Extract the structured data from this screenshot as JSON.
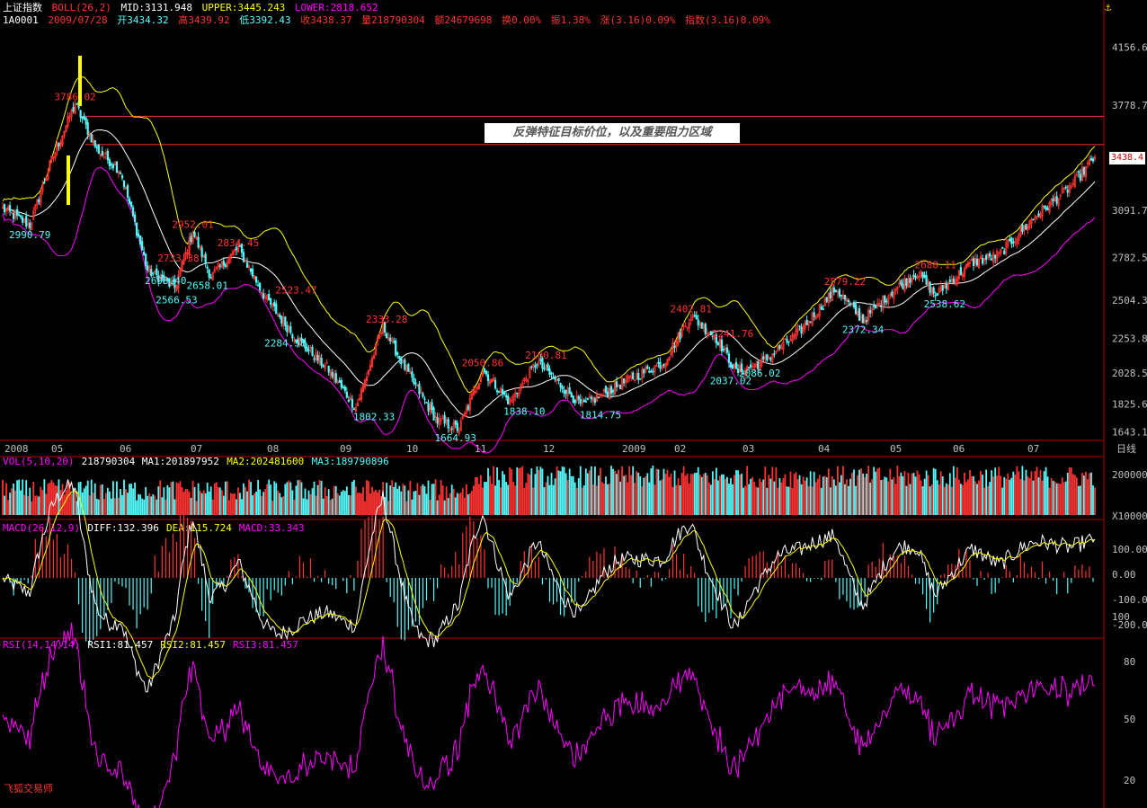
{
  "header": {
    "index_name": "上证指数",
    "indicator": "BOLL(26,2)",
    "mid_label": "MID:3131.948",
    "upper_label": "UPPER:3445.243",
    "lower_label": "LOWER:2818.652",
    "code": "1A0001",
    "date": "2009/07/28",
    "open": "开3434.32",
    "high": "高3439.92",
    "low": "低3392.43",
    "close": "收3438.37",
    "volume": "量218790304",
    "amount": "额24679698",
    "turnover": "换0.00%",
    "amplitude": "振1.38%",
    "rise": "涨(3.16)0.09%",
    "index_chg": "指数(3.16)0.09%"
  },
  "annotation": "反弹特征目标价位，以及重要阻力区域",
  "current_price_tag": "3438.4",
  "brand": "飞狐交易师",
  "panels": {
    "vol_header": [
      "VOL(5,10,20)",
      "218790304",
      "MA1:201897952",
      "MA2:202481600",
      "MA3:189790896"
    ],
    "macd_header": [
      "MACD(26,12,9)",
      "DIFF:132.396",
      "DEA:115.724",
      "MACD:33.343"
    ],
    "rsi_header": [
      "RSI(14,14,14)",
      "RSI1:81.457",
      "RSI2:81.457",
      "RSI3:81.457"
    ]
  },
  "colors": {
    "up": "#ff3232",
    "down": "#54fcfc",
    "mid": "#ffffff",
    "upper": "#ffff00",
    "lower": "#ff00ff",
    "resistance": "#ff3030",
    "axis": "#b00000",
    "text": "#c0c0c0"
  },
  "chart_data": {
    "type": "candlestick",
    "title": "上证指数 BOLL(26,2)",
    "price_axis_ticks": [
      4156.6,
      3778.7,
      3438.4,
      3091.7,
      2782.5,
      2504.3,
      2253.8,
      2028.5,
      1825.6,
      1643.1
    ],
    "price_range": [
      1600,
      4300
    ],
    "time_labels": [
      "2008",
      "05",
      "06",
      "07",
      "08",
      "09",
      "10",
      "11",
      "12",
      "2009",
      "02",
      "03",
      "04",
      "05",
      "06",
      "07",
      "日线"
    ],
    "resistance_levels": [
      3705,
      3520
    ],
    "waypoints": [
      {
        "i": 0,
        "close": 3100
      },
      {
        "i": 15,
        "close": 2995
      },
      {
        "i": 27,
        "close": 3420
      },
      {
        "i": 40,
        "close": 3786
      },
      {
        "i": 52,
        "close": 3490
      },
      {
        "i": 65,
        "close": 3350
      },
      {
        "i": 80,
        "close": 2700
      },
      {
        "i": 95,
        "close": 2586
      },
      {
        "i": 105,
        "close": 2952
      },
      {
        "i": 115,
        "close": 2658
      },
      {
        "i": 130,
        "close": 2845
      },
      {
        "i": 145,
        "close": 2523
      },
      {
        "i": 160,
        "close": 2284
      },
      {
        "i": 180,
        "close": 2050
      },
      {
        "i": 195,
        "close": 1802
      },
      {
        "i": 210,
        "close": 2333
      },
      {
        "i": 225,
        "close": 2000
      },
      {
        "i": 240,
        "close": 1715
      },
      {
        "i": 252,
        "close": 1664
      },
      {
        "i": 265,
        "close": 2050
      },
      {
        "i": 280,
        "close": 1838
      },
      {
        "i": 295,
        "close": 2100
      },
      {
        "i": 320,
        "close": 1814
      },
      {
        "i": 340,
        "close": 1950
      },
      {
        "i": 365,
        "close": 2100
      },
      {
        "i": 380,
        "close": 2402
      },
      {
        "i": 395,
        "close": 2242
      },
      {
        "i": 405,
        "close": 2037
      },
      {
        "i": 420,
        "close": 2100
      },
      {
        "i": 440,
        "close": 2300
      },
      {
        "i": 460,
        "close": 2579
      },
      {
        "i": 475,
        "close": 2372
      },
      {
        "i": 490,
        "close": 2550
      },
      {
        "i": 505,
        "close": 2688
      },
      {
        "i": 515,
        "close": 2538
      },
      {
        "i": 535,
        "close": 2750
      },
      {
        "i": 550,
        "close": 2800
      },
      {
        "i": 570,
        "close": 3050
      },
      {
        "i": 590,
        "close": 3250
      },
      {
        "i": 603,
        "close": 3438
      }
    ],
    "volume_axis": [
      "200000",
      "X10000"
    ],
    "macd_axis": [
      "100.00",
      "0.00",
      "-100.0",
      "-200.0",
      "100"
    ],
    "rsi_axis": [
      "80",
      "50",
      "20"
    ],
    "peak_labels": [
      {
        "text": "3786.02",
        "i": 40,
        "price": 3786,
        "pos": "above"
      },
      {
        "text": "2990.79",
        "i": 15,
        "price": 2990,
        "pos": "below"
      },
      {
        "text": "2952.01",
        "i": 105,
        "price": 2952,
        "pos": "above"
      },
      {
        "text": "2693.40",
        "i": 90,
        "price": 2693,
        "pos": "below"
      },
      {
        "text": "2733.38",
        "i": 97,
        "price": 2733,
        "pos": "above"
      },
      {
        "text": "2566.53",
        "i": 96,
        "price": 2566,
        "pos": "below"
      },
      {
        "text": "2658.01",
        "i": 113,
        "price": 2658,
        "pos": "below"
      },
      {
        "text": "2834.45",
        "i": 130,
        "price": 2834,
        "pos": "above"
      },
      {
        "text": "2523.47",
        "i": 162,
        "price": 2523,
        "pos": "above"
      },
      {
        "text": "2284.58",
        "i": 156,
        "price": 2284,
        "pos": "below"
      },
      {
        "text": "2333.28",
        "i": 212,
        "price": 2333,
        "pos": "above"
      },
      {
        "text": "1802.33",
        "i": 205,
        "price": 1802,
        "pos": "below"
      },
      {
        "text": "1664.93",
        "i": 250,
        "price": 1664,
        "pos": "below"
      },
      {
        "text": "2050.86",
        "i": 265,
        "price": 2050,
        "pos": "above"
      },
      {
        "text": "2100.81",
        "i": 300,
        "price": 2100,
        "pos": "above"
      },
      {
        "text": "1838.10",
        "i": 288,
        "price": 1838,
        "pos": "below"
      },
      {
        "text": "1814.75",
        "i": 330,
        "price": 1814,
        "pos": "below"
      },
      {
        "text": "2402.81",
        "i": 380,
        "price": 2402,
        "pos": "above"
      },
      {
        "text": "2241.76",
        "i": 403,
        "price": 2241,
        "pos": "above"
      },
      {
        "text": "2037.02",
        "i": 402,
        "price": 2037,
        "pos": "below"
      },
      {
        "text": "2086.02",
        "i": 418,
        "price": 2086,
        "pos": "below"
      },
      {
        "text": "2579.22",
        "i": 465,
        "price": 2579,
        "pos": "above"
      },
      {
        "text": "2372.34",
        "i": 475,
        "price": 2372,
        "pos": "below"
      },
      {
        "text": "2688.11",
        "i": 515,
        "price": 2688,
        "pos": "above"
      },
      {
        "text": "2538.62",
        "i": 520,
        "price": 2538,
        "pos": "below"
      }
    ]
  }
}
